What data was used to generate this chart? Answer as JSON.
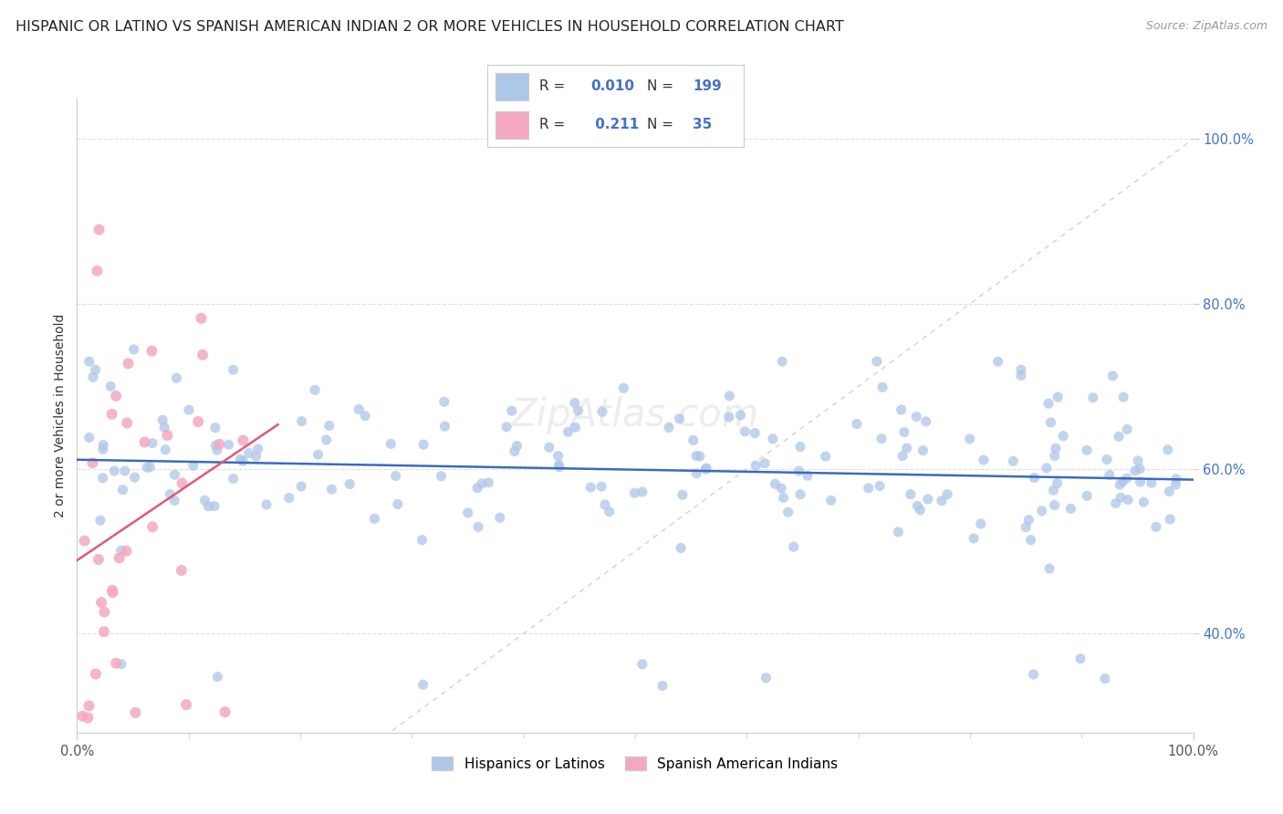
{
  "title": "HISPANIC OR LATINO VS SPANISH AMERICAN INDIAN 2 OR MORE VEHICLES IN HOUSEHOLD CORRELATION CHART",
  "source": "Source: ZipAtlas.com",
  "ylabel": "2 or more Vehicles in Household",
  "blue_R": 0.01,
  "blue_N": 199,
  "pink_R": 0.211,
  "pink_N": 35,
  "blue_color": "#aec6e8",
  "blue_line_color": "#3a6bbf",
  "pink_color": "#f4a8bf",
  "pink_line_color": "#e05878",
  "diagonal_color": "#d8d0d0",
  "grid_color": "#e0e0e0",
  "background_color": "#ffffff",
  "legend_label_blue": "Hispanics or Latinos",
  "legend_label_pink": "Spanish American Indians",
  "title_fontsize": 11.5,
  "source_fontsize": 9,
  "axis_label_fontsize": 10,
  "tick_fontsize": 10.5,
  "legend_fontsize": 11,
  "watermark_text": "ZipAtlas.com",
  "xlim": [
    0.0,
    1.0
  ],
  "ylim": [
    0.28,
    1.05
  ],
  "y_ticks": [
    0.4,
    0.6,
    0.8,
    1.0
  ],
  "y_tick_labels": [
    "40.0%",
    "60.0%",
    "80.0%",
    "100.0%"
  ],
  "x_tick_left": "0.0%",
  "x_tick_right": "100.0%"
}
